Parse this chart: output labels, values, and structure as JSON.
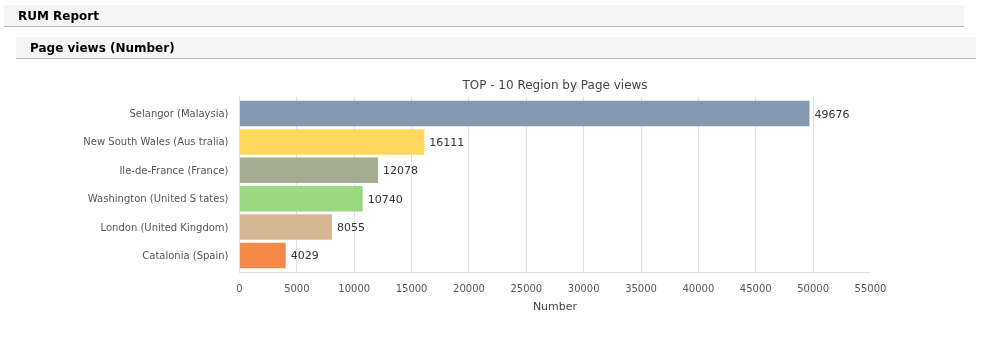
{
  "chart_data": {
    "type": "bar",
    "orientation": "horizontal",
    "title": "TOP - 10 Region by Page views",
    "xlabel": "Number",
    "annotations": [
      "RUM Report",
      "Page views (Number)"
    ],
    "categories": [
      "Selangor (Malaysia)",
      "New South Wales (Aus tralia)",
      "Ile-de-France (France)",
      "Washington (United S tates)",
      "London (United Kingdom)",
      "Catalonia (Spain)"
    ],
    "values": [
      49676,
      16111,
      12078,
      10740,
      8055,
      4029
    ],
    "colors": [
      "#8499b0",
      "#ffd85c",
      "#a4ad92",
      "#98d982",
      "#d6b794",
      "#f4894a"
    ],
    "xlim": [
      0,
      55000
    ],
    "xticks": [
      0,
      5000,
      10000,
      15000,
      20000,
      25000,
      30000,
      35000,
      40000,
      45000,
      50000,
      55000
    ],
    "grid": "x",
    "data_labels": true
  }
}
